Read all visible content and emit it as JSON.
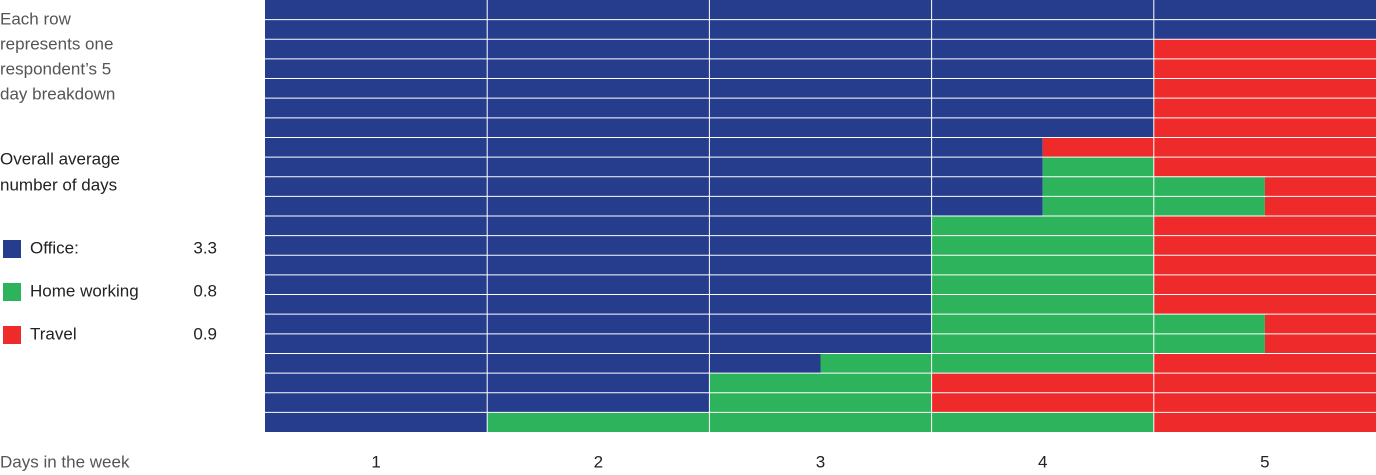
{
  "chart_data": {
    "type": "stacked_barh",
    "note": [
      "Each row",
      "represents one",
      "respondent’s 5",
      "day breakdown"
    ],
    "legend_title": [
      "Overall average",
      "number of days"
    ],
    "xlabel": "Days in the week",
    "day_labels": [
      "1",
      "2",
      "3",
      "4",
      "5"
    ],
    "xlim": [
      0,
      5
    ],
    "categories": [
      null,
      null,
      null,
      null,
      null,
      null,
      null,
      null,
      null,
      null,
      null,
      null,
      null,
      null,
      null,
      null,
      null,
      null,
      null,
      null,
      null,
      null
    ],
    "series": [
      {
        "name": "Office:",
        "color": "#253d8c",
        "average": 3.3,
        "values": [
          5,
          5,
          4,
          4,
          4,
          4,
          4,
          3.5,
          3.5,
          3.5,
          3.5,
          3,
          3,
          3,
          3,
          3,
          3,
          3,
          2.5,
          2,
          2,
          1
        ]
      },
      {
        "name": "Home working",
        "color": "#2db35c",
        "average": 0.8,
        "values": [
          0,
          0,
          0,
          0,
          0,
          0,
          0,
          0,
          0.5,
          1,
          1,
          1,
          1,
          1,
          1,
          1,
          1.5,
          1.5,
          1.5,
          1,
          1,
          3
        ]
      },
      {
        "name": "Travel",
        "color": "#ee2a2a",
        "average": 0.9,
        "values": [
          0,
          0,
          1,
          1,
          1,
          1,
          1,
          1.5,
          1,
          0.5,
          0.5,
          1,
          1,
          1,
          1,
          1,
          0.5,
          0.5,
          1,
          2,
          2,
          1
        ]
      }
    ]
  }
}
